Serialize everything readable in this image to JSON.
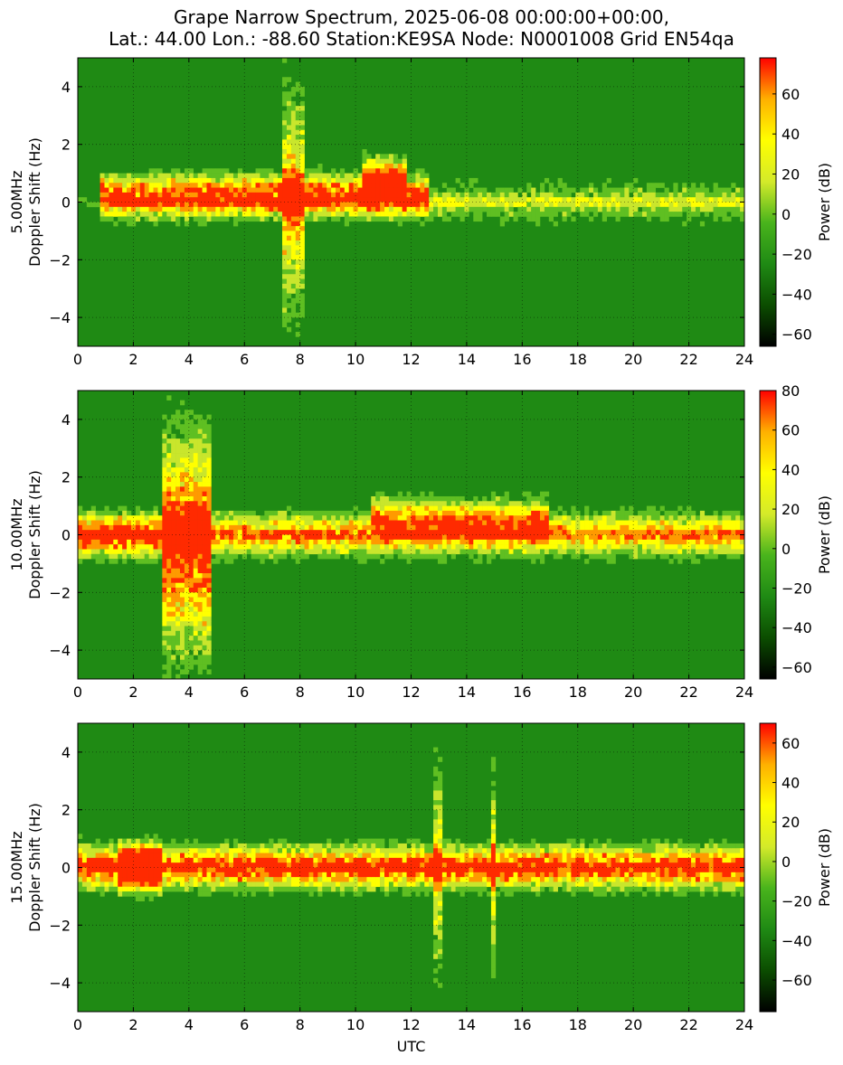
{
  "title": {
    "line1": "Grape Narrow Spectrum, 2025-06-08 00:00:00+00:00,",
    "line2": "Lat.: 44.00 Lon.: -88.60 Station:KE9SA Node: N0001008 Grid EN54qa"
  },
  "colors": {
    "background_green": "#1f8a14",
    "colormap": [
      "#000000",
      "#0b4d00",
      "#1f8a14",
      "#49b41c",
      "#d4ea2a",
      "#ffff00",
      "#ffb000",
      "#ff0000"
    ]
  },
  "chart_data": [
    {
      "type": "heatmap",
      "frequency_label": "5.00MHz",
      "ylabel": "Doppler Shift (Hz)",
      "xlabel": "",
      "xlim": [
        0,
        24
      ],
      "ylim": [
        -5,
        5
      ],
      "xticks": [
        0,
        2,
        4,
        6,
        8,
        10,
        12,
        14,
        16,
        18,
        20,
        22,
        24
      ],
      "yticks": [
        -4,
        -2,
        0,
        2,
        4
      ],
      "grid": true,
      "colorbar": {
        "label": "Power (dB)",
        "range": [
          -66,
          78
        ],
        "ticks": [
          -60,
          -40,
          -20,
          0,
          20,
          40,
          60
        ]
      },
      "features": [
        {
          "from": 0.8,
          "to": 12.7,
          "doppler": 0.2,
          "strength": 0.85
        },
        {
          "from": 12.7,
          "to": 24,
          "doppler": 0.0,
          "strength": 0.25
        },
        {
          "from": 7.3,
          "to": 8.2,
          "doppler": 0.0,
          "strength": 0.55,
          "vertical": true
        },
        {
          "from": 10.2,
          "to": 11.8,
          "doppler": 0.8,
          "strength": 0.7
        }
      ]
    },
    {
      "type": "heatmap",
      "frequency_label": "10.00MHz",
      "ylabel": "Doppler Shift (Hz)",
      "xlabel": "",
      "xlim": [
        0,
        24
      ],
      "ylim": [
        -5,
        5
      ],
      "xticks": [
        0,
        2,
        4,
        6,
        8,
        10,
        12,
        14,
        16,
        18,
        20,
        22,
        24
      ],
      "yticks": [
        -4,
        -2,
        0,
        2,
        4
      ],
      "grid": true,
      "colorbar": {
        "label": "Power (dB)",
        "range": [
          -66,
          80
        ],
        "ticks": [
          -60,
          -40,
          -20,
          0,
          20,
          40,
          60,
          80
        ]
      },
      "features": [
        {
          "from": 0,
          "to": 4.8,
          "doppler": 0.0,
          "strength": 0.9
        },
        {
          "from": 4.8,
          "to": 24,
          "doppler": 0.0,
          "strength": 0.6
        },
        {
          "from": 10.5,
          "to": 17.0,
          "doppler": 0.6,
          "strength": 0.45
        },
        {
          "from": 3.0,
          "to": 4.8,
          "doppler": -0.3,
          "strength": 0.8,
          "vertical": true
        }
      ]
    },
    {
      "type": "heatmap",
      "frequency_label": "15.00MHz",
      "ylabel": "Doppler Shift (Hz)",
      "xlabel": "UTC",
      "xlim": [
        0,
        24
      ],
      "ylim": [
        -5,
        5
      ],
      "xticks": [
        0,
        2,
        4,
        6,
        8,
        10,
        12,
        14,
        16,
        18,
        20,
        22,
        24
      ],
      "yticks": [
        -4,
        -2,
        0,
        2,
        4
      ],
      "grid": true,
      "colorbar": {
        "label": "Power (dB)",
        "range": [
          -76,
          70
        ],
        "ticks": [
          -60,
          -40,
          -20,
          0,
          20,
          40,
          60
        ]
      },
      "features": [
        {
          "from": 0,
          "to": 24,
          "doppler": 0.0,
          "strength": 0.8
        },
        {
          "from": 1.5,
          "to": 3.0,
          "doppler": 0.0,
          "strength": 0.9
        },
        {
          "from": 12.8,
          "to": 13.2,
          "doppler": 0.0,
          "strength": 0.4,
          "vertical": true
        },
        {
          "from": 14.9,
          "to": 15.1,
          "doppler": 0.0,
          "strength": 0.4,
          "vertical": true
        }
      ]
    }
  ]
}
